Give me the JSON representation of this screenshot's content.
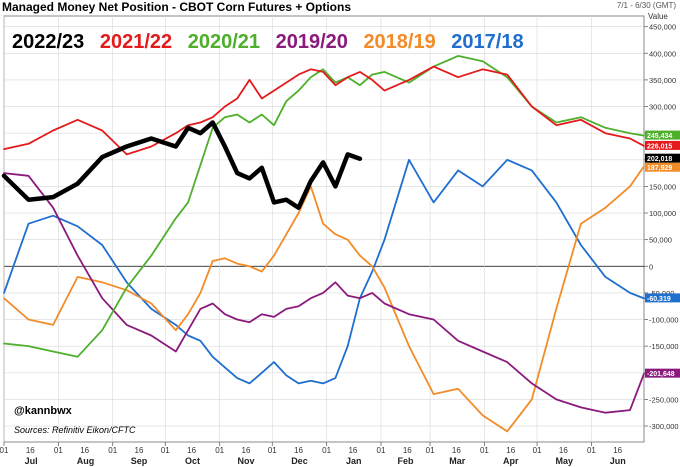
{
  "header": {
    "title": "Managed Money Net Position - CBOT Corn Futures + Options",
    "date_range": "7/1 - 6/30 (GMT)",
    "value_label": "Value"
  },
  "credit": "@kannbwx",
  "source": "Sources: Refinitiv Eikon/CFTC",
  "chart_data": {
    "type": "line",
    "title": "Managed Money Net Position - CBOT Corn Futures + Options",
    "ylim": [
      -330000,
      470000
    ],
    "y_ticks": [
      450000,
      400000,
      350000,
      300000,
      250000,
      200000,
      150000,
      100000,
      50000,
      0,
      -50000,
      -100000,
      -150000,
      -200000,
      -250000,
      -300000
    ],
    "y_tick_labels": [
      "450,000",
      "400,000",
      "350,000",
      "300,000",
      "250,000",
      "200,000",
      "150,000",
      "100,000",
      "50,000",
      "0",
      "-50,000",
      "-100,000",
      "-150,000",
      "-200,000",
      "-250,000",
      "-300,000"
    ],
    "x_range_days": [
      0,
      365
    ],
    "month_labels": [
      "Jul",
      "Aug",
      "Sep",
      "Oct",
      "Nov",
      "Dec",
      "Jan",
      "Feb",
      "Mar",
      "Apr",
      "May",
      "Jun"
    ],
    "month_start_days": [
      0,
      31,
      62,
      92,
      123,
      153,
      184,
      215,
      243,
      274,
      304,
      335
    ],
    "grid": true,
    "legend_position": "top-left",
    "series": [
      {
        "name": "2022/23",
        "color": "#000000",
        "width": 4.5,
        "end_label": "202,018",
        "x": [
          0,
          14,
          28,
          42,
          56,
          70,
          84,
          98,
          105,
          112,
          119,
          126,
          133,
          140,
          147,
          154,
          161,
          168,
          175,
          182,
          189,
          196,
          203
        ],
        "y": [
          170000,
          125000,
          130000,
          155000,
          205000,
          225000,
          240000,
          225000,
          260000,
          250000,
          270000,
          225000,
          175000,
          165000,
          185000,
          120000,
          125000,
          110000,
          160000,
          195000,
          150000,
          210000,
          202018
        ]
      },
      {
        "name": "2021/22",
        "color": "#e41a1c",
        "width": 1.8,
        "end_label": "226,015",
        "x": [
          0,
          14,
          28,
          42,
          56,
          70,
          84,
          98,
          105,
          112,
          119,
          126,
          133,
          140,
          147,
          154,
          161,
          168,
          175,
          182,
          189,
          196,
          203,
          210,
          217,
          231,
          245,
          259,
          273,
          287,
          301,
          315,
          329,
          343,
          357,
          365
        ],
        "y": [
          220000,
          230000,
          255000,
          275000,
          255000,
          210000,
          225000,
          250000,
          265000,
          270000,
          280000,
          300000,
          315000,
          350000,
          315000,
          330000,
          345000,
          360000,
          370000,
          365000,
          340000,
          355000,
          365000,
          350000,
          330000,
          350000,
          375000,
          355000,
          370000,
          360000,
          300000,
          265000,
          275000,
          250000,
          240000,
          226015
        ]
      },
      {
        "name": "2020/21",
        "color": "#4daf2a",
        "width": 1.8,
        "end_label": "245,434",
        "x": [
          0,
          14,
          28,
          42,
          56,
          70,
          84,
          98,
          105,
          112,
          119,
          126,
          133,
          140,
          147,
          154,
          161,
          168,
          175,
          182,
          189,
          196,
          203,
          210,
          217,
          231,
          245,
          259,
          273,
          287,
          301,
          315,
          329,
          343,
          357,
          365
        ],
        "y": [
          -145000,
          -150000,
          -160000,
          -170000,
          -120000,
          -40000,
          20000,
          90000,
          120000,
          190000,
          260000,
          280000,
          285000,
          270000,
          285000,
          265000,
          310000,
          330000,
          355000,
          370000,
          345000,
          355000,
          340000,
          360000,
          365000,
          345000,
          375000,
          395000,
          385000,
          355000,
          300000,
          270000,
          280000,
          260000,
          250000,
          245434
        ]
      },
      {
        "name": "2019/20",
        "color": "#8b1a7d",
        "width": 1.8,
        "end_label": "-201,648",
        "x": [
          0,
          14,
          28,
          42,
          56,
          70,
          84,
          98,
          105,
          112,
          119,
          126,
          133,
          140,
          147,
          154,
          161,
          168,
          175,
          182,
          189,
          196,
          203,
          210,
          217,
          231,
          245,
          259,
          273,
          287,
          301,
          315,
          329,
          343,
          357,
          365
        ],
        "y": [
          175000,
          170000,
          110000,
          20000,
          -60000,
          -110000,
          -130000,
          -160000,
          -120000,
          -80000,
          -70000,
          -90000,
          -100000,
          -105000,
          -90000,
          -95000,
          -80000,
          -75000,
          -60000,
          -50000,
          -30000,
          -55000,
          -60000,
          -50000,
          -70000,
          -90000,
          -100000,
          -140000,
          -160000,
          -180000,
          -220000,
          -250000,
          -265000,
          -275000,
          -270000,
          -201648
        ]
      },
      {
        "name": "2018/19",
        "color": "#f28c28",
        "width": 1.8,
        "end_label": "187,929",
        "x": [
          0,
          14,
          28,
          42,
          56,
          70,
          84,
          98,
          105,
          112,
          119,
          126,
          133,
          140,
          147,
          154,
          161,
          168,
          175,
          182,
          189,
          196,
          203,
          210,
          217,
          231,
          245,
          259,
          273,
          287,
          301,
          315,
          329,
          343,
          357,
          365
        ],
        "y": [
          -60000,
          -100000,
          -110000,
          -20000,
          -30000,
          -45000,
          -70000,
          -120000,
          -90000,
          -50000,
          10000,
          15000,
          5000,
          0,
          -10000,
          20000,
          60000,
          100000,
          150000,
          80000,
          60000,
          50000,
          20000,
          0,
          -40000,
          -150000,
          -240000,
          -230000,
          -280000,
          -310000,
          -250000,
          -80000,
          80000,
          110000,
          150000,
          187929
        ]
      },
      {
        "name": "2017/18",
        "color": "#1f6fcf",
        "width": 1.8,
        "end_label": "-60,319",
        "x": [
          0,
          14,
          28,
          42,
          56,
          70,
          84,
          98,
          105,
          112,
          119,
          126,
          133,
          140,
          147,
          154,
          161,
          168,
          175,
          182,
          189,
          196,
          203,
          210,
          217,
          231,
          245,
          259,
          273,
          287,
          301,
          315,
          329,
          343,
          357,
          365
        ],
        "y": [
          -50000,
          80000,
          95000,
          75000,
          40000,
          -30000,
          -80000,
          -110000,
          -130000,
          -140000,
          -170000,
          -190000,
          -210000,
          -220000,
          -200000,
          -180000,
          -205000,
          -220000,
          -215000,
          -220000,
          -210000,
          -150000,
          -60000,
          -10000,
          50000,
          200000,
          120000,
          180000,
          150000,
          200000,
          180000,
          120000,
          40000,
          -20000,
          -50000,
          -60319
        ]
      }
    ]
  }
}
